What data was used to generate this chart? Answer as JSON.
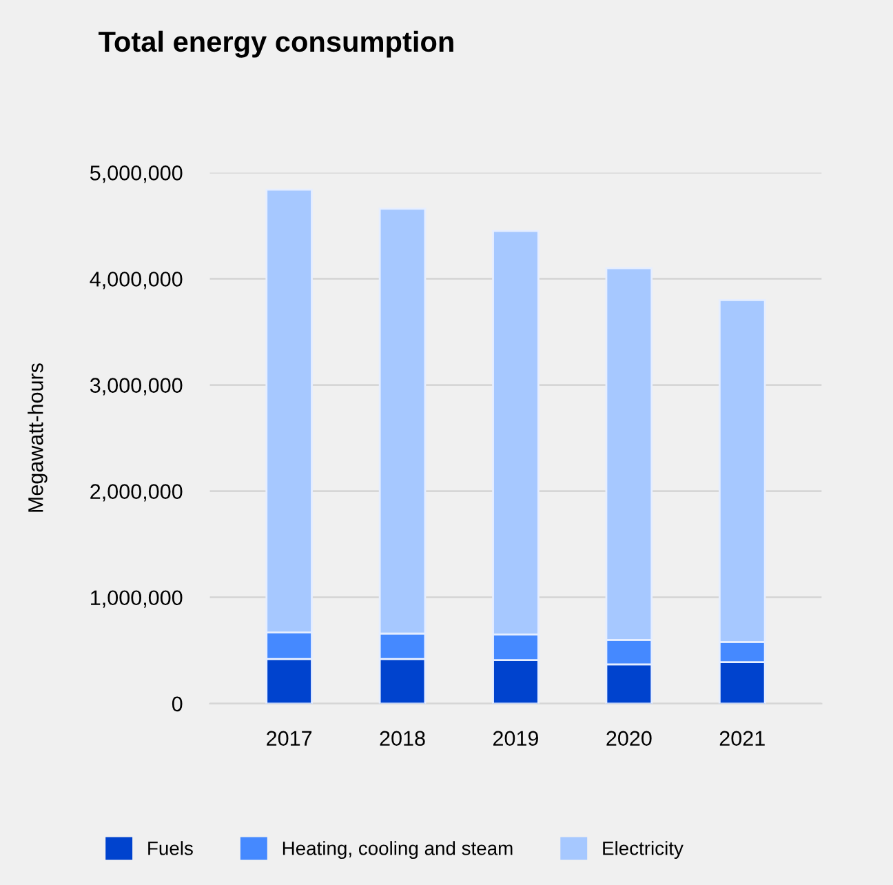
{
  "chart_data": {
    "type": "bar",
    "title": "Total energy consumption",
    "ylabel": "Megawatt-hours",
    "categories": [
      "2017",
      "2018",
      "2019",
      "2020",
      "2021"
    ],
    "stacked": true,
    "series": [
      {
        "name": "Fuels",
        "color": "#0043ce",
        "values": [
          420000,
          420000,
          410000,
          370000,
          390000
        ]
      },
      {
        "name": "Heating, cooling and steam",
        "color": "#4589ff",
        "values": [
          250000,
          240000,
          240000,
          230000,
          190000
        ]
      },
      {
        "name": "Electricity",
        "color": "#a6c8ff",
        "values": [
          4170000,
          4000000,
          3800000,
          3500000,
          3220000
        ]
      }
    ],
    "ylim": [
      0,
      5000000
    ],
    "yticks": [
      {
        "value": 0,
        "label": "0"
      },
      {
        "value": 1000000,
        "label": "1,000,000"
      },
      {
        "value": 2000000,
        "label": "2,000,000"
      },
      {
        "value": 3000000,
        "label": "3,000,000"
      },
      {
        "value": 4000000,
        "label": "4,000,000"
      },
      {
        "value": 5000000,
        "label": "5,000,000"
      }
    ],
    "grid": "y",
    "legend": "bottom"
  }
}
